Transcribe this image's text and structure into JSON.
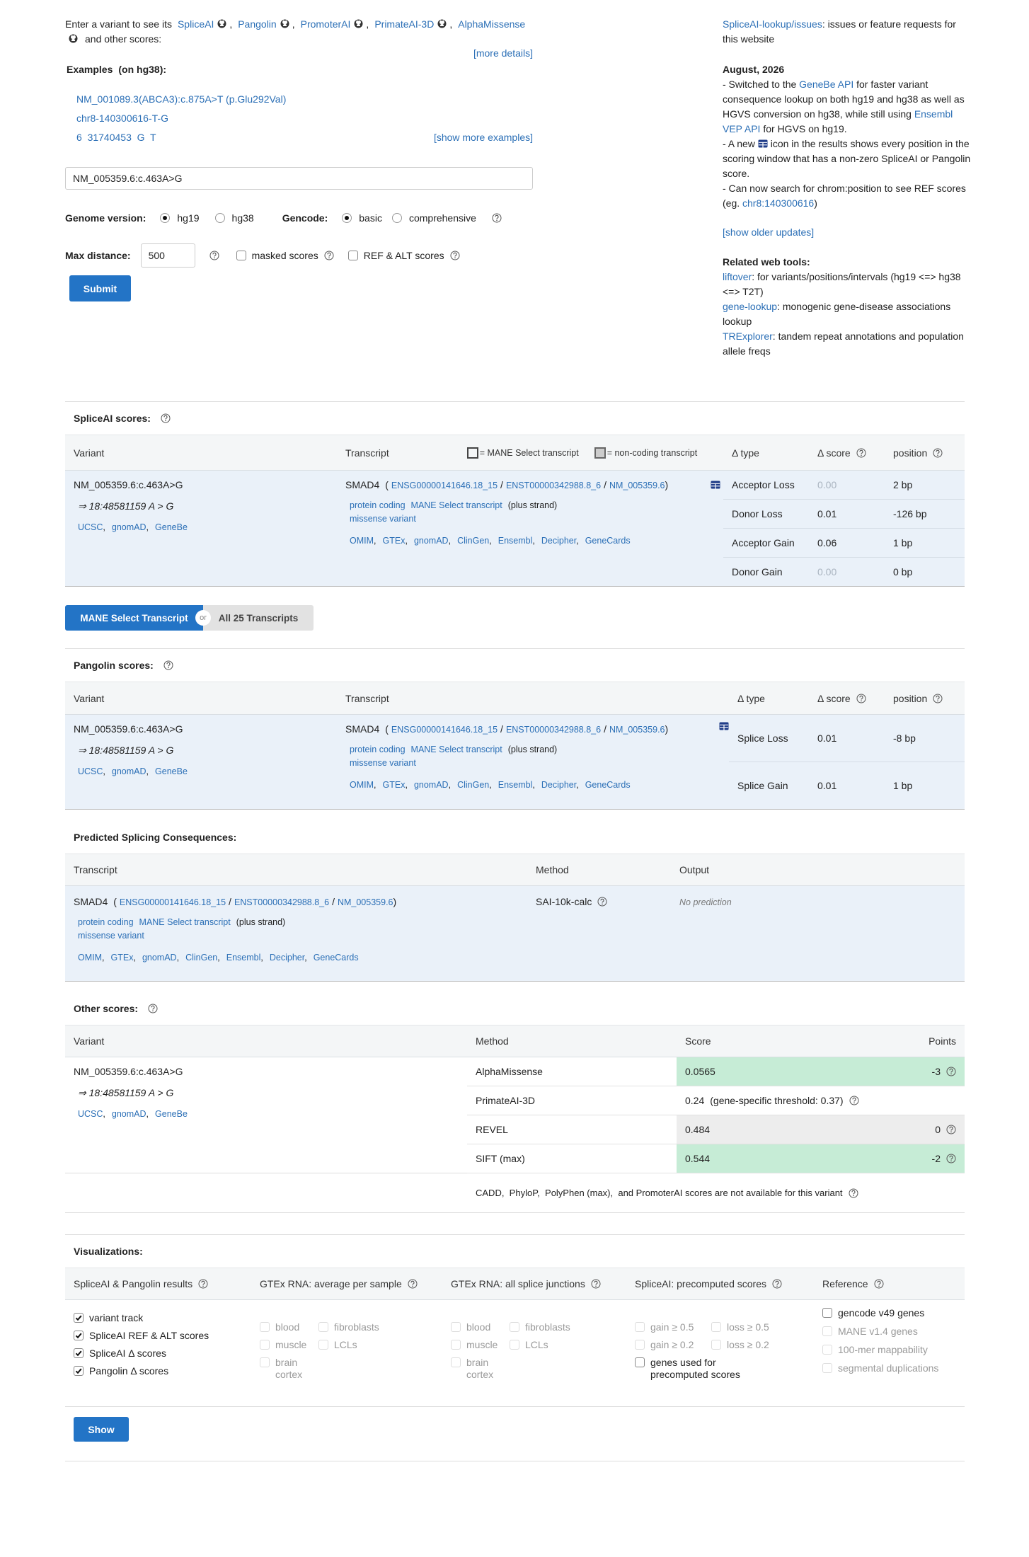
{
  "intro": {
    "prefix": "Enter a variant to see its",
    "tools": [
      "SpliceAI",
      "Pangolin",
      "PromoterAI",
      "PrimateAI-3D",
      "AlphaMissense"
    ],
    "separator": ",",
    "suffix": "and other scores:",
    "more_details": "[more details]"
  },
  "examples": {
    "label": "Examples",
    "note": "(on hg38):",
    "items": [
      "NM_001089.3(ABCA3):c.875A>T (p.Glu292Val)",
      "chr8-140300616-T-G",
      "6  31740453  G  T"
    ],
    "more": "[show more examples]"
  },
  "form": {
    "genome_label": "Genome version:",
    "genome_options": [
      {
        "label": "hg19",
        "checked": true
      },
      {
        "label": "hg38",
        "checked": false
      }
    ],
    "gencode_label": "Gencode:",
    "gencode_options": [
      {
        "label": "basic",
        "checked": true
      },
      {
        "label": "comprehensive",
        "checked": false
      }
    ],
    "max_distance_label": "Max distance:",
    "max_distance": "500",
    "masked": "masked scores",
    "ref_alt": "REF & ALT scores",
    "submit": "Submit"
  },
  "sidebar": {
    "issues": [
      {
        "link": "SpliceAI-lookup/issues"
      },
      {
        "text": ": issues or feature requests for this website"
      }
    ],
    "updates_title": "August, 2026",
    "updates": [
      [
        {
          "text": "- Switched to the "
        },
        {
          "link": "GeneBe API"
        },
        {
          "text": " for faster variant consequence lookup on both hg19 and hg38 as well as HGVS conversion on hg38, while still using "
        },
        {
          "link": "Ensembl VEP API"
        },
        {
          "text": " for HGVS on hg19."
        }
      ],
      [
        {
          "text": "- A new "
        },
        {
          "icon": true
        },
        {
          "text": " icon in the results shows every position in the scoring window that has a non-zero SpliceAI or Pangolin score."
        }
      ],
      [
        {
          "text": "- Can now search for chrom:position to see REF scores (eg. "
        },
        {
          "link": "chr8:140300616"
        },
        {
          "text": ")"
        }
      ]
    ],
    "older": "[show older updates]",
    "tools_title": "Related web tools:",
    "tools": [
      [
        {
          "link": "liftover"
        },
        {
          "text": ": for variants/positions/intervals (hg19 <=> hg38 <=> T2T)"
        }
      ],
      [
        {
          "link": "gene-lookup"
        },
        {
          "text": ": monogenic gene-disease associations lookup"
        }
      ],
      [
        {
          "link": "TRExplorer"
        },
        {
          "text": ": tandem repeat annotations and population allele freqs"
        }
      ]
    ]
  },
  "variant": {
    "input": "NM_005359.6:c.463A>G",
    "coords": "⇒ 18:48581159 A > G",
    "links": [
      "UCSC",
      "gnomAD",
      "GeneBe"
    ],
    "link_separator": ","
  },
  "transcript": {
    "gene": "SMAD4",
    "open": "(",
    "ids": [
      "ENSG00000141646.18_15",
      "ENST00000342988.8_6",
      "NM_005359.6"
    ],
    "id_separator": "/",
    "close": ")",
    "tags": [
      "protein coding",
      "MANE Select transcript"
    ],
    "strand": "(plus strand)",
    "consequence": "missense variant",
    "links": [
      "OMIM",
      "GTEx",
      "gnomAD",
      "ClinGen",
      "Ensembl",
      "Decipher",
      "GeneCards"
    ],
    "link_separator": ","
  },
  "spliceai": {
    "title": "SpliceAI scores:",
    "headers": {
      "variant": "Variant",
      "transcript": "Transcript",
      "mane_legend": "= MANE Select transcript",
      "noncoding_legend": "= non-coding transcript",
      "type": "Δ type",
      "score": "Δ score",
      "position": "position"
    },
    "rows": [
      [
        "Acceptor Loss",
        "0.00",
        "2 bp"
      ],
      [
        "Donor Loss",
        "0.01",
        "-126 bp"
      ],
      [
        "Acceptor Gain",
        "0.06",
        "1 bp"
      ],
      [
        "Donor Gain",
        "0.00",
        "0 bp"
      ]
    ]
  },
  "toggle": {
    "active": "MANE Select Transcript",
    "or": "or",
    "other": "All 25 Transcripts"
  },
  "pangolin": {
    "title": "Pangolin scores:",
    "headers": {
      "variant": "Variant",
      "transcript": "Transcript",
      "type": "Δ type",
      "score": "Δ score",
      "position": "position"
    },
    "rows": [
      [
        "Splice Loss",
        "0.01",
        "-8 bp"
      ],
      [
        "Splice Gain",
        "0.01",
        "1 bp"
      ]
    ]
  },
  "consequences": {
    "title": "Predicted Splicing Consequences:",
    "headers": [
      "Transcript",
      "Method",
      "Output"
    ],
    "method": "SAI-10k-calc",
    "output": "No prediction"
  },
  "other": {
    "title": "Other scores:",
    "headers": [
      "Variant",
      "Method",
      "Score",
      "Points"
    ],
    "rows": [
      {
        "method": "AlphaMissense",
        "score": "0.0565",
        "points": "-3",
        "color": "#c6ecd6"
      },
      {
        "method": "PrimateAI-3D",
        "score": "0.24",
        "threshold": "(gene-specific threshold: 0.37)"
      },
      {
        "method": "REVEL",
        "score": "0.484",
        "points": "0",
        "color": "#ededed"
      },
      {
        "method": "SIFT (max)",
        "score": "0.544",
        "points": "-2",
        "color": "#c6ecd6"
      }
    ],
    "note": "CADD,  PhyloP,  PolyPhen (max),  and PromoterAI scores are not available for this variant"
  },
  "viz": {
    "title": "Visualizations:",
    "show": "Show",
    "columns": [
      {
        "header": "SpliceAI & Pangolin results",
        "grid": false,
        "items": [
          {
            "label": "variant track",
            "checked": true,
            "disabled": false
          },
          {
            "label": "SpliceAI REF & ALT scores",
            "checked": true,
            "disabled": false
          },
          {
            "label": "SpliceAI Δ  scores",
            "checked": true,
            "disabled": false
          },
          {
            "label": "Pangolin Δ  scores",
            "checked": true,
            "disabled": false
          }
        ]
      },
      {
        "header": "GTEx RNA: average per sample",
        "grid": true,
        "items": [
          {
            "label": "blood",
            "checked": false,
            "disabled": true
          },
          {
            "label": "fibroblasts",
            "checked": false,
            "disabled": true
          },
          {
            "label": "muscle",
            "checked": false,
            "disabled": true
          },
          {
            "label": "LCLs",
            "checked": false,
            "disabled": true
          },
          {
            "label": "brain cortex",
            "checked": false,
            "disabled": true
          }
        ]
      },
      {
        "header": "GTEx RNA: all splice junctions",
        "grid": true,
        "items": [
          {
            "label": "blood",
            "checked": false,
            "disabled": true
          },
          {
            "label": "fibroblasts",
            "checked": false,
            "disabled": true
          },
          {
            "label": "muscle",
            "checked": false,
            "disabled": true
          },
          {
            "label": "LCLs",
            "checked": false,
            "disabled": true
          },
          {
            "label": "brain cortex",
            "checked": false,
            "disabled": true
          }
        ]
      },
      {
        "header": "SpliceAI: precomputed scores",
        "grid": true,
        "items": [
          {
            "label": "gain ≥ 0.5",
            "checked": false,
            "disabled": true
          },
          {
            "label": "loss ≥ 0.5",
            "checked": false,
            "disabled": true
          },
          {
            "label": "gain ≥ 0.2",
            "checked": false,
            "disabled": true
          },
          {
            "label": "loss ≥ 0.2",
            "checked": false,
            "disabled": true
          },
          {
            "label": "genes used for precomputed scores",
            "checked": false,
            "disabled": false,
            "wide": true
          }
        ]
      },
      {
        "header": "Reference",
        "grid": false,
        "items": [
          {
            "label": "gencode v49 genes",
            "checked": false,
            "disabled": false
          },
          {
            "label": "MANE v1.4 genes",
            "checked": false,
            "disabled": true
          },
          {
            "label": "100-mer mappability",
            "checked": false,
            "disabled": true
          },
          {
            "label": "segmental duplications",
            "checked": false,
            "disabled": true
          }
        ]
      }
    ]
  }
}
